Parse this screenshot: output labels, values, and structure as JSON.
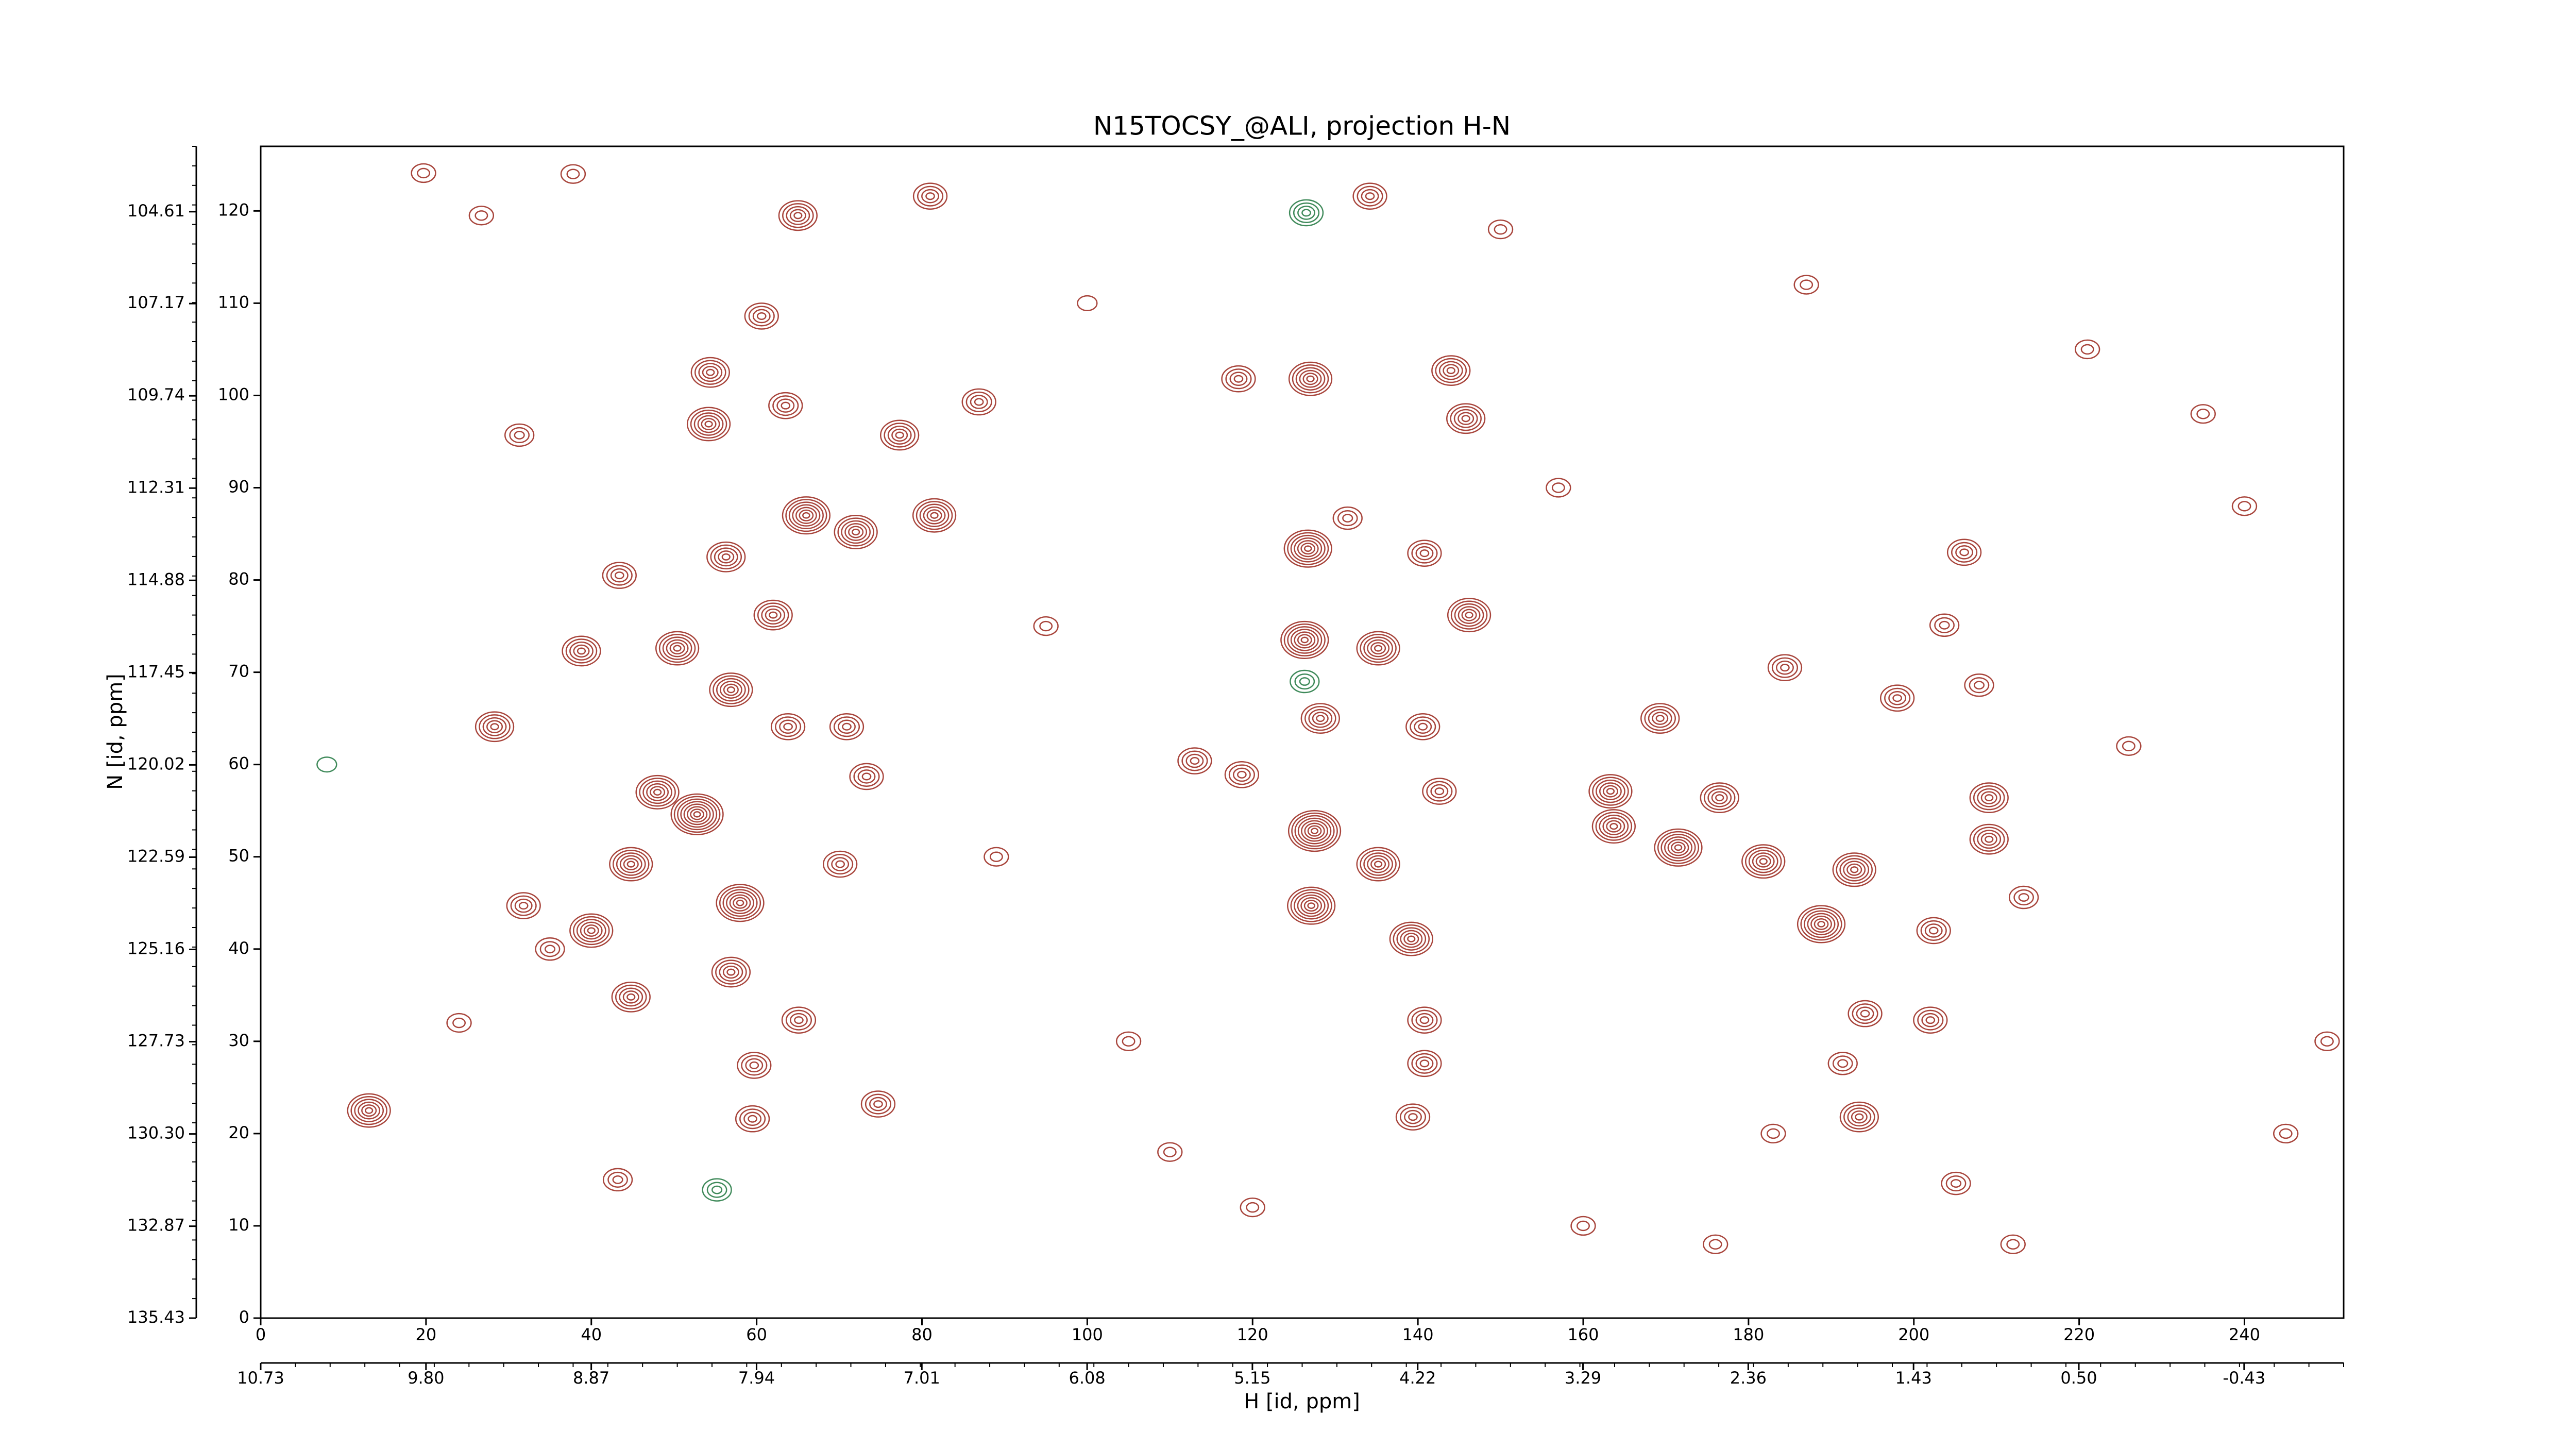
{
  "chart_data": {
    "type": "contour",
    "title": "N15TOCSY_@ALI, projection H-N",
    "xlabel": "H [id, ppm]",
    "ylabel": "N [id, ppm]",
    "xlim": [
      0,
      252
    ],
    "ylim": [
      0,
      127
    ],
    "xticks": [
      0,
      20,
      40,
      60,
      80,
      100,
      120,
      140,
      160,
      180,
      200,
      220,
      240
    ],
    "yticks": [
      0,
      10,
      20,
      30,
      40,
      50,
      60,
      70,
      80,
      90,
      100,
      110,
      120
    ],
    "x2lim": [
      10.73,
      -0.99
    ],
    "x2ticks": [
      10.73,
      {
        "value": 9.8,
        "label": "9.80"
      },
      8.87,
      7.94,
      7.01,
      6.08,
      5.15,
      4.22,
      3.29,
      2.36,
      1.43,
      {
        "value": 0.5,
        "label": "0.50"
      },
      -0.43
    ],
    "y2lim": [
      135.43,
      102.79
    ],
    "y2ticks": [
      135.43,
      132.87,
      {
        "value": 130.3,
        "label": "130.30"
      },
      127.73,
      125.16,
      122.59,
      120.02,
      117.45,
      114.88,
      112.31,
      109.74,
      107.17,
      104.61
    ],
    "positive_color": "#a8453c",
    "negative_color": "#3f8a5a",
    "peaks": {
      "x": [
        65,
        81,
        60.6,
        54.4,
        54.2,
        63.5,
        77.3,
        86.9,
        31.3,
        66,
        72,
        81.5,
        56.3,
        43.4,
        62,
        38.8,
        50.4,
        56.9,
        28.3,
        63.8,
        70.9,
        73.3,
        52.8,
        44.8,
        70.1,
        44.8,
        31.8,
        56.9,
        65.1,
        59.7,
        59.5,
        74.7,
        13.1,
        43.2,
        55.2,
        126.5,
        126.3,
        134.2,
        118.3,
        127,
        144,
        145.8,
        131.5,
        140.8,
        126.7,
        126.3,
        135.2,
        146.2,
        128.2,
        140.6,
        113,
        118.7,
        142.6,
        127.5,
        135.2,
        127.1,
        139.2,
        140.8,
        140.8,
        139.4,
        163.3,
        169.3,
        163.7,
        171.5,
        176.5,
        184.4,
        188.8,
        181.8,
        192.8,
        198,
        206.1,
        203.7,
        207.9,
        209.1,
        209.1,
        213.3,
        202,
        194.1,
        191.4,
        193.4,
        205.1,
        202.4,
        48,
        40,
        58,
        35,
        24,
        19.7,
        37.8,
        26.7,
        100,
        105,
        110,
        157,
        221,
        235,
        245,
        183,
        212,
        95,
        89,
        160,
        150,
        120,
        176,
        187,
        226,
        240,
        8,
        250
      ],
      "y": [
        119.5,
        121.6,
        108.6,
        102.5,
        96.9,
        98.9,
        95.7,
        99.3,
        95.7,
        87,
        85.2,
        87,
        82.5,
        80.5,
        76.2,
        72.3,
        72.6,
        68.1,
        64.1,
        64.1,
        64.1,
        58.7,
        54.6,
        49.2,
        49.2,
        34.8,
        44.7,
        37.5,
        32.3,
        27.4,
        21.6,
        23.2,
        22.5,
        15,
        13.9,
        119.8,
        69,
        121.6,
        101.8,
        101.8,
        102.7,
        97.5,
        86.7,
        82.9,
        83.4,
        73.5,
        72.6,
        76.2,
        65,
        64.1,
        60.4,
        58.9,
        57.1,
        52.8,
        49.2,
        44.7,
        41.1,
        32.3,
        27.6,
        21.8,
        57.1,
        65,
        53.3,
        51,
        56.4,
        70.5,
        42.7,
        49.5,
        48.6,
        67.2,
        83,
        75.1,
        68.6,
        56.4,
        51.9,
        45.6,
        32.3,
        33,
        27.6,
        21.8,
        14.6,
        42,
        57,
        42,
        45,
        40,
        32,
        124.1,
        124,
        119.5,
        110,
        30,
        18,
        90,
        105,
        98,
        20,
        20,
        8,
        75,
        50,
        10,
        118,
        12,
        8,
        112,
        62,
        88,
        60,
        30
      ],
      "intensity": [
        5,
        4,
        4,
        5,
        6,
        4,
        5,
        4,
        3,
        7,
        6,
        6,
        5,
        4,
        5,
        5,
        6,
        6,
        5,
        4,
        4,
        4,
        8,
        6,
        4,
        5,
        4,
        5,
        4,
        4,
        4,
        4,
        6,
        3,
        -3,
        -4,
        -3,
        4,
        4,
        6,
        5,
        5,
        3,
        4,
        7,
        7,
        6,
        6,
        5,
        4,
        4,
        4,
        4,
        8,
        6,
        7,
        6,
        4,
        4,
        4,
        6,
        5,
        6,
        7,
        5,
        4,
        7,
        6,
        6,
        4,
        4,
        3,
        3,
        5,
        5,
        3,
        4,
        4,
        3,
        5,
        3,
        4,
        6,
        6,
        7,
        3,
        2,
        2,
        2,
        2,
        1,
        2,
        2,
        2,
        2,
        2,
        2,
        2,
        2,
        2,
        2,
        2,
        2,
        2,
        2,
        2,
        2,
        2,
        -1,
        2
      ]
    }
  }
}
